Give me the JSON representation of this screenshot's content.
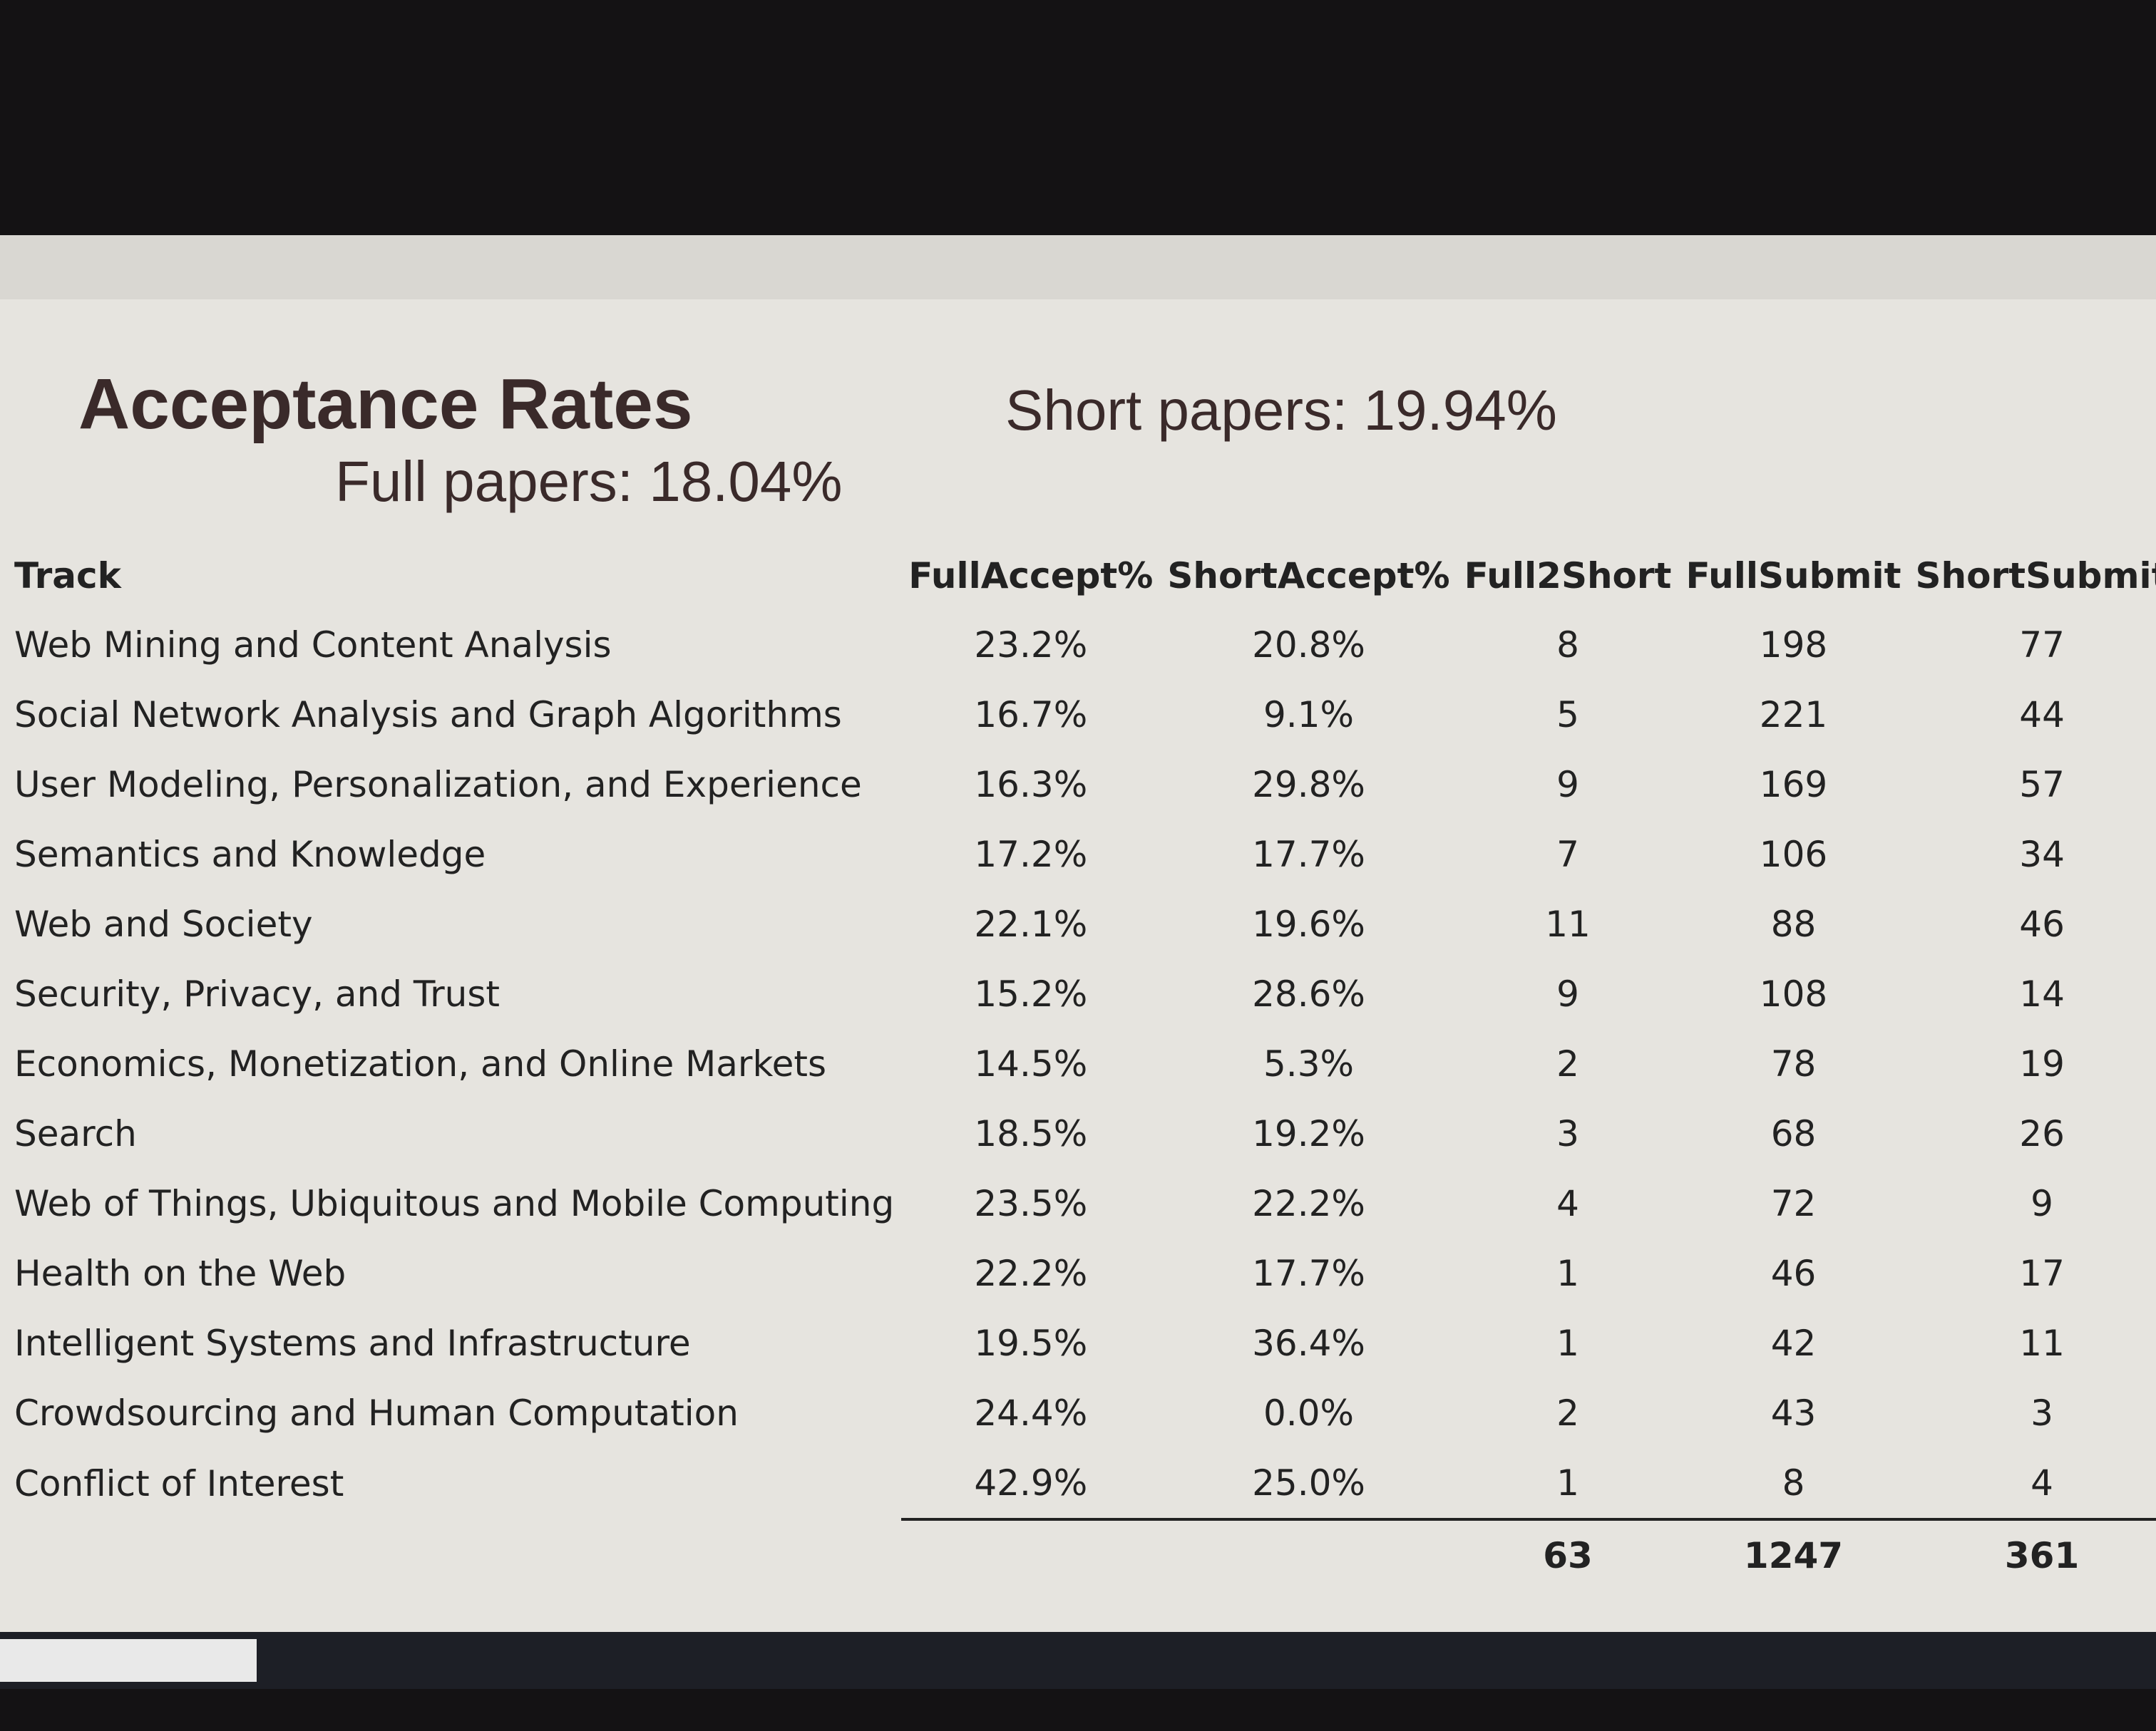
{
  "header": {
    "title": "Acceptance Rates",
    "full_papers": "Full papers: 18.04%",
    "short_papers": "Short papers: 19.94%"
  },
  "table": {
    "columns": [
      "Track",
      "FullAccept%",
      "ShortAccept%",
      "Full2Short",
      "FullSubmit",
      "ShortSubmit"
    ],
    "rows": [
      [
        "Web Mining and Content Analysis",
        "23.2%",
        "20.8%",
        "8",
        "198",
        "77"
      ],
      [
        "Social Network Analysis and Graph Algorithms",
        "16.7%",
        "9.1%",
        "5",
        "221",
        "44"
      ],
      [
        "User Modeling, Personalization, and Experience",
        "16.3%",
        "29.8%",
        "9",
        "169",
        "57"
      ],
      [
        "Semantics and Knowledge",
        "17.2%",
        "17.7%",
        "7",
        "106",
        "34"
      ],
      [
        "Web and Society",
        "22.1%",
        "19.6%",
        "11",
        "88",
        "46"
      ],
      [
        "Security, Privacy, and Trust",
        "15.2%",
        "28.6%",
        "9",
        "108",
        "14"
      ],
      [
        "Economics, Monetization, and Online Markets",
        "14.5%",
        "5.3%",
        "2",
        "78",
        "19"
      ],
      [
        "Search",
        "18.5%",
        "19.2%",
        "3",
        "68",
        "26"
      ],
      [
        "Web of Things, Ubiquitous and Mobile Computing",
        "23.5%",
        "22.2%",
        "4",
        "72",
        "9"
      ],
      [
        "Health on the Web",
        "22.2%",
        "17.7%",
        "1",
        "46",
        "17"
      ],
      [
        "Intelligent Systems and Infrastructure",
        "19.5%",
        "36.4%",
        "1",
        "42",
        "11"
      ],
      [
        "Crowdsourcing and Human Computation",
        "24.4%",
        "0.0%",
        "2",
        "43",
        "3"
      ],
      [
        "Conflict of Interest",
        "42.9%",
        "25.0%",
        "1",
        "8",
        "4"
      ]
    ],
    "totals": [
      "63",
      "1247",
      "361"
    ]
  }
}
